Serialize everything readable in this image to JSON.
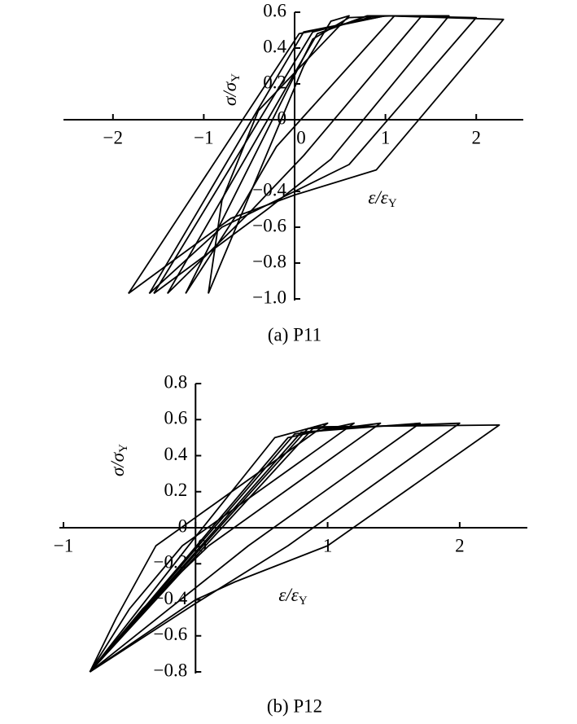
{
  "chart_data": [
    {
      "type": "line",
      "caption": "(a) P11",
      "color": "#000000",
      "x_label": {
        "main": "ε/ε",
        "sub": "Y"
      },
      "y_label": {
        "main": "σ/σ",
        "sub": "Y"
      },
      "xlim": [
        -2.5,
        2.5
      ],
      "ylim": [
        -1.0,
        0.6
      ],
      "xticks": [
        {
          "value": -2,
          "label": "−2"
        },
        {
          "value": -1,
          "label": "−1"
        },
        0,
        1,
        2
      ],
      "yticks": [
        0.6,
        0.4,
        0.2,
        0,
        {
          "value": -0.4,
          "label": "−0.4"
        },
        {
          "value": -0.6,
          "label": "−0.6"
        },
        {
          "value": -0.8,
          "label": "−0.8"
        },
        {
          "value": -1.0,
          "label": "−1.0"
        }
      ],
      "series": [
        {
          "x": [
            -0.95,
            0.1,
            0.4,
            0.6,
            -0.4,
            -0.8,
            -0.95
          ],
          "values": [
            -0.97,
            0.3,
            0.55,
            0.58,
            0.05,
            -0.45,
            -0.97
          ]
        },
        {
          "x": [
            -1.2,
            0.2,
            0.6,
            1.1,
            -0.2,
            -0.6,
            -1.2
          ],
          "values": [
            -0.97,
            0.45,
            0.57,
            0.58,
            -0.15,
            -0.5,
            -0.97
          ]
        },
        {
          "x": [
            -1.4,
            0.25,
            0.8,
            1.4,
            0.1,
            -0.5,
            -1.4
          ],
          "values": [
            -0.97,
            0.48,
            0.58,
            0.58,
            -0.2,
            -0.52,
            -0.97
          ]
        },
        {
          "x": [
            -1.55,
            0.2,
            0.9,
            1.7,
            0.4,
            -0.3,
            -1.55
          ],
          "values": [
            -0.97,
            0.49,
            0.58,
            0.58,
            -0.22,
            -0.5,
            -0.97
          ]
        },
        {
          "x": [
            -1.6,
            0.1,
            1.0,
            2.0,
            0.6,
            -0.2,
            -0.8,
            -1.6
          ],
          "values": [
            -0.97,
            0.49,
            0.58,
            0.57,
            -0.25,
            -0.45,
            -0.6,
            -0.97
          ]
        },
        {
          "x": [
            -1.83,
            0.05,
            1.0,
            2.3,
            0.9,
            0.0,
            -0.7,
            -1.83
          ],
          "values": [
            -0.97,
            0.48,
            0.58,
            0.56,
            -0.28,
            -0.42,
            -0.55,
            -0.97
          ]
        }
      ]
    },
    {
      "type": "line",
      "caption": "(b) P12",
      "color": "#000000",
      "x_label": {
        "main": "ε/ε",
        "sub": "Y"
      },
      "y_label": {
        "main": "σ/σ",
        "sub": "Y"
      },
      "xlim": [
        -1,
        2.5
      ],
      "ylim": [
        -0.8,
        0.8
      ],
      "xticks": [
        {
          "value": -1,
          "label": "−1"
        },
        0,
        1,
        2
      ],
      "yticks": [
        0.8,
        0.6,
        0.4,
        0.2,
        0,
        {
          "value": -0.2,
          "label": "−0.2"
        },
        {
          "value": -0.4,
          "label": "−0.4"
        },
        {
          "value": -0.6,
          "label": "−0.6"
        },
        {
          "value": -0.8,
          "label": "−0.8"
        }
      ],
      "series": [
        {
          "x": [
            -0.8,
            0.0,
            0.6,
            1.0,
            -0.3,
            -0.6,
            -0.8
          ],
          "values": [
            -0.8,
            -0.05,
            0.5,
            0.58,
            -0.1,
            -0.5,
            -0.8
          ]
        },
        {
          "x": [
            -0.8,
            0.7,
            1.2,
            -0.1,
            -0.5,
            -0.8
          ],
          "values": [
            -0.8,
            0.5,
            0.58,
            -0.1,
            -0.45,
            -0.8
          ]
        },
        {
          "x": [
            -0.8,
            0.75,
            1.4,
            0.1,
            -0.4,
            -0.8
          ],
          "values": [
            -0.8,
            0.52,
            0.58,
            -0.1,
            -0.45,
            -0.8
          ]
        },
        {
          "x": [
            -0.8,
            0.8,
            1.7,
            0.4,
            -0.2,
            -0.8
          ],
          "values": [
            -0.8,
            0.53,
            0.58,
            -0.1,
            -0.45,
            -0.8
          ]
        },
        {
          "x": [
            -0.8,
            0.85,
            2.0,
            0.7,
            0.0,
            -0.8
          ],
          "values": [
            -0.8,
            0.55,
            0.58,
            -0.1,
            -0.42,
            -0.8
          ]
        },
        {
          "x": [
            -0.8,
            0.9,
            2.3,
            1.0,
            0.3,
            0.0,
            -0.8
          ],
          "values": [
            -0.8,
            0.56,
            0.57,
            -0.1,
            -0.3,
            -0.4,
            -0.8
          ]
        }
      ]
    }
  ]
}
